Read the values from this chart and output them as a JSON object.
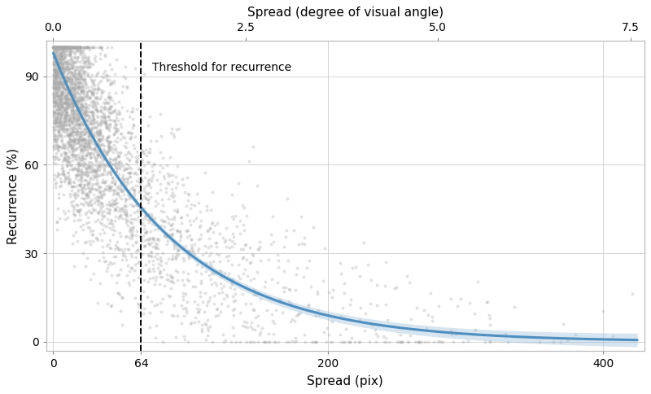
{
  "title": "",
  "xlabel_bottom": "Spread (pix)",
  "xlabel_top": "Spread (degree of visual angle)",
  "ylabel": "Recurrence (%)",
  "xlim_pix": [
    -5,
    430
  ],
  "ylim": [
    -3,
    102
  ],
  "yticks": [
    0,
    30,
    60,
    90
  ],
  "xticks_bottom": [
    0,
    64,
    200,
    400
  ],
  "xticks_top_vals": [
    0.0,
    2.5,
    5.0,
    7.5
  ],
  "xticks_top_labels": [
    "0.0",
    "2.5",
    "5.0",
    "7.5"
  ],
  "vline_x": 64,
  "vline_label": "Threshold for recurrence",
  "scatter_color": "#aaaaaa",
  "scatter_alpha": 0.35,
  "scatter_size": 8,
  "line_color": "#4f8fbf",
  "line_width": 2.2,
  "ci_color": "#9bbfda",
  "ci_alpha": 0.4,
  "background_color": "#ffffff",
  "grid_color": "#cccccc",
  "pix_per_degree": 56.0,
  "decay_A": 98.0,
  "decay_k": 0.012,
  "seed": 42,
  "n_points": 4000
}
